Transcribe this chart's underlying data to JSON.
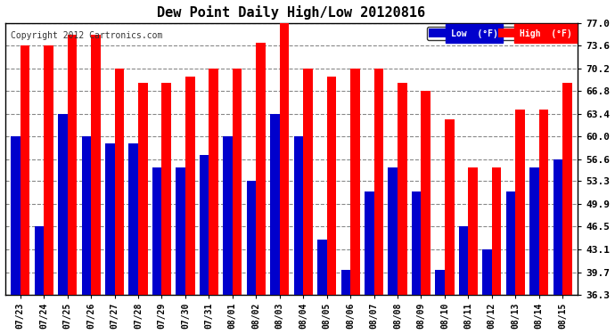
{
  "title": "Dew Point Daily High/Low 20120816",
  "copyright": "Copyright 2012 Cartronics.com",
  "dates": [
    "07/23",
    "07/24",
    "07/25",
    "07/26",
    "07/27",
    "07/28",
    "07/29",
    "07/30",
    "07/31",
    "08/01",
    "08/02",
    "08/03",
    "08/04",
    "08/05",
    "08/06",
    "08/07",
    "08/08",
    "08/09",
    "08/10",
    "08/11",
    "08/12",
    "08/13",
    "08/14",
    "08/15"
  ],
  "high": [
    73.6,
    73.6,
    75.2,
    75.2,
    70.2,
    68.0,
    68.0,
    69.0,
    70.2,
    70.2,
    74.0,
    77.0,
    70.2,
    69.0,
    70.2,
    70.2,
    68.0,
    66.8,
    62.6,
    55.4,
    55.4,
    64.0,
    64.0,
    68.0
  ],
  "low": [
    60.0,
    46.5,
    63.4,
    60.0,
    59.0,
    59.0,
    55.4,
    55.4,
    57.2,
    60.0,
    53.3,
    63.4,
    60.0,
    44.6,
    40.0,
    51.8,
    55.4,
    51.8,
    40.0,
    46.5,
    43.1,
    51.8,
    55.4,
    56.6
  ],
  "ylim": [
    36.3,
    77.0
  ],
  "yticks": [
    36.3,
    39.7,
    43.1,
    46.5,
    49.9,
    53.3,
    56.6,
    60.0,
    63.4,
    66.8,
    70.2,
    73.6,
    77.0
  ],
  "high_color": "#ff0000",
  "low_color": "#0000cc",
  "bg_color": "#ffffff",
  "plot_bg_color": "#ffffff",
  "border_color": "#000000",
  "grid_color": "#888888",
  "legend_low_label": "Low  (°F)",
  "legend_high_label": "High  (°F)",
  "bar_width": 0.4,
  "figsize": [
    6.9,
    3.75
  ],
  "dpi": 100
}
